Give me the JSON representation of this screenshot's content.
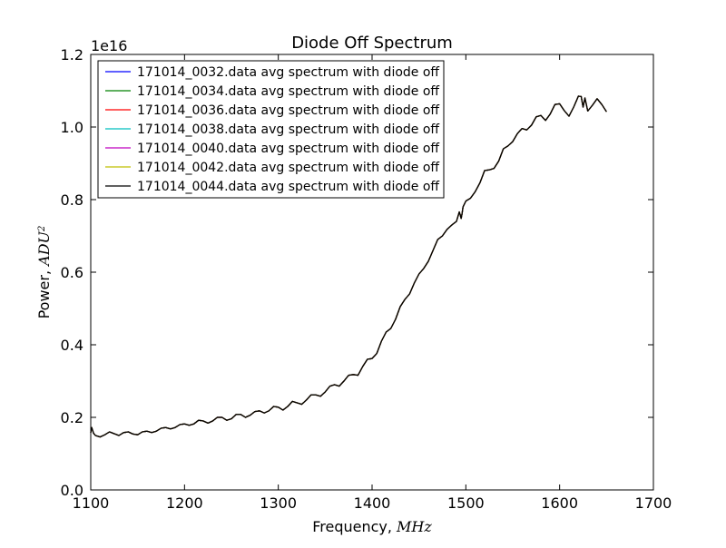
{
  "chart_data": {
    "type": "line",
    "title": "Diode Off Spectrum",
    "xlabel": "Frequency, ",
    "xlabel_unit": "MHz",
    "ylabel": "Power, ",
    "ylabel_unit": "ADU",
    "ylabel_unit_exp": "2",
    "y_offset_label": "1e16",
    "xlim": [
      1100,
      1700
    ],
    "ylim": [
      0.0,
      1.2
    ],
    "xticks": [
      1100,
      1200,
      1300,
      1400,
      1500,
      1600,
      1700
    ],
    "yticks": [
      0.0,
      0.2,
      0.4,
      0.6,
      0.8,
      1.0,
      1.2
    ],
    "xtick_labels": [
      "1100",
      "1200",
      "1300",
      "1400",
      "1500",
      "1600",
      "1700"
    ],
    "ytick_labels": [
      "0.0",
      "0.2",
      "0.4",
      "0.6",
      "0.8",
      "1.0",
      "1.2"
    ],
    "grid": false,
    "legend_position": "top-left",
    "series": [
      {
        "name": "171014_0032.data avg spectrum with diode off",
        "color": "#0000ff"
      },
      {
        "name": "171014_0034.data avg spectrum with diode off",
        "color": "#008000"
      },
      {
        "name": "171014_0036.data avg spectrum with diode off",
        "color": "#ff0000"
      },
      {
        "name": "171014_0038.data avg spectrum with diode off",
        "color": "#00bfbf"
      },
      {
        "name": "171014_0040.data avg spectrum with diode off",
        "color": "#bf00bf"
      },
      {
        "name": "171014_0042.data avg spectrum with diode off",
        "color": "#bfbf00"
      },
      {
        "name": "171014_0044.data avg spectrum with diode off",
        "color": "#000000"
      }
    ],
    "x": [
      1100,
      1101,
      1103,
      1105,
      1110,
      1115,
      1120,
      1125,
      1130,
      1135,
      1140,
      1145,
      1150,
      1155,
      1160,
      1165,
      1170,
      1175,
      1180,
      1185,
      1190,
      1195,
      1200,
      1205,
      1210,
      1215,
      1220,
      1225,
      1230,
      1235,
      1240,
      1245,
      1250,
      1255,
      1260,
      1265,
      1270,
      1275,
      1280,
      1285,
      1290,
      1295,
      1300,
      1305,
      1310,
      1315,
      1320,
      1325,
      1330,
      1335,
      1340,
      1345,
      1350,
      1355,
      1360,
      1365,
      1370,
      1375,
      1380,
      1385,
      1390,
      1395,
      1400,
      1405,
      1410,
      1415,
      1420,
      1425,
      1430,
      1435,
      1440,
      1445,
      1450,
      1455,
      1460,
      1465,
      1470,
      1475,
      1480,
      1485,
      1490,
      1493,
      1494,
      1495,
      1496,
      1497,
      1500,
      1505,
      1510,
      1515,
      1520,
      1525,
      1530,
      1535,
      1540,
      1545,
      1550,
      1555,
      1560,
      1565,
      1570,
      1575,
      1580,
      1585,
      1590,
      1595,
      1600,
      1605,
      1610,
      1615,
      1620,
      1623,
      1625,
      1627,
      1630,
      1635,
      1640,
      1645,
      1650
    ],
    "y": [
      1.58,
      1.72,
      1.56,
      1.5,
      1.46,
      1.52,
      1.6,
      1.55,
      1.5,
      1.58,
      1.6,
      1.54,
      1.52,
      1.6,
      1.62,
      1.58,
      1.62,
      1.7,
      1.72,
      1.68,
      1.72,
      1.8,
      1.82,
      1.78,
      1.82,
      1.92,
      1.9,
      1.84,
      1.9,
      2.0,
      2.0,
      1.92,
      1.96,
      2.08,
      2.08,
      2.0,
      2.06,
      2.16,
      2.18,
      2.12,
      2.18,
      2.3,
      2.28,
      2.2,
      2.3,
      2.44,
      2.4,
      2.36,
      2.48,
      2.62,
      2.62,
      2.58,
      2.7,
      2.86,
      2.9,
      2.86,
      3.0,
      3.16,
      3.18,
      3.16,
      3.4,
      3.6,
      3.62,
      3.76,
      4.1,
      4.35,
      4.45,
      4.7,
      5.05,
      5.25,
      5.4,
      5.7,
      5.95,
      6.1,
      6.3,
      6.6,
      6.9,
      7.0,
      7.18,
      7.3,
      7.4,
      7.66,
      7.58,
      7.48,
      7.62,
      7.8,
      7.96,
      8.04,
      8.22,
      8.46,
      8.8,
      8.82,
      8.86,
      9.06,
      9.4,
      9.48,
      9.6,
      9.82,
      9.96,
      9.92,
      10.05,
      10.28,
      10.32,
      10.18,
      10.36,
      10.62,
      10.64,
      10.45,
      10.3,
      10.55,
      10.85,
      10.84,
      10.55,
      10.8,
      10.44,
      10.6,
      10.78,
      10.62,
      10.42
    ]
  }
}
